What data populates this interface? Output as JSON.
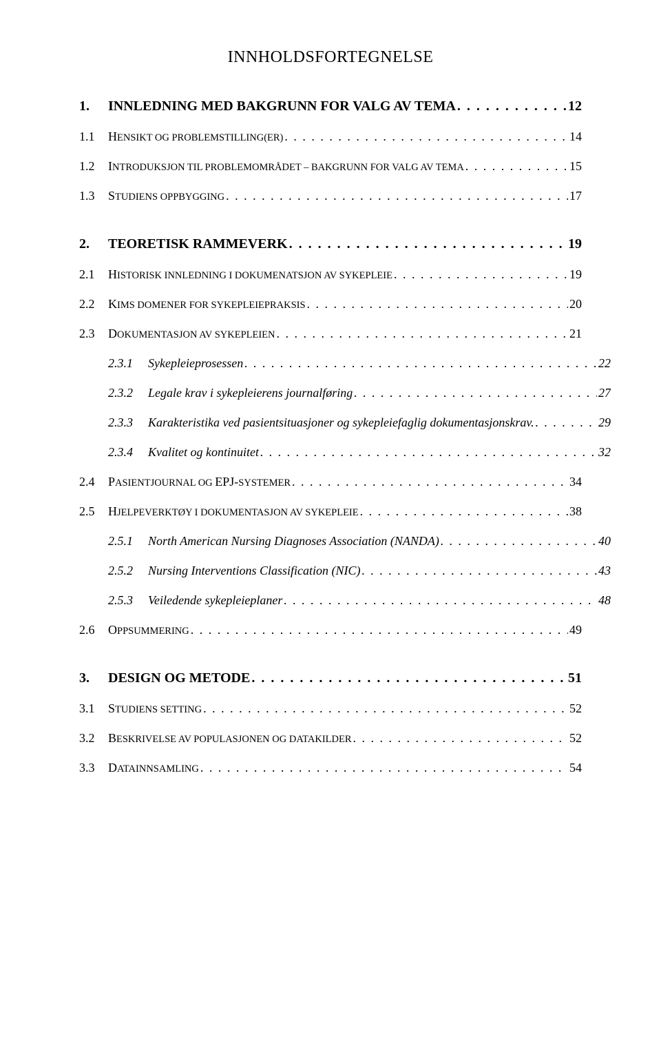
{
  "title": "INNHOLDSFORTEGNELSE",
  "leader_fill": ". . . . . . . . . . . . . . . . . . . . . . . . . . . . . . . . . . . . . . . . . . . . . . . . . . . . . . . . . . . . . . . . . . . . . . . . . . . . . . . . . . . . . . . . . . . . . . . . . . . . . . . . . . . . . . . . . . . .",
  "entries": [
    {
      "level": 1,
      "num": "1.",
      "label": "INNLEDNING MED BAKGRUNN FOR VALG AV TEMA",
      "page": "12"
    },
    {
      "level": 2,
      "num": "1.1",
      "lead": "H",
      "rest": "ENSIKT OG PROBLEMSTILLING(ER)",
      "page": "14"
    },
    {
      "level": 2,
      "num": "1.2",
      "lead": "I",
      "rest": "NTRODUKSJON TIL PROBLEMOMRÅDET – BAKGRUNN FOR VALG AV TEMA",
      "page": "15"
    },
    {
      "level": 2,
      "num": "1.3",
      "lead": "S",
      "rest": "TUDIENS OPPBYGGING",
      "page": "17"
    },
    {
      "level": 1,
      "num": "2.",
      "label": "TEORETISK RAMMEVERK",
      "page": "19",
      "chapter_spacer": true
    },
    {
      "level": 2,
      "num": "2.1",
      "lead": "H",
      "rest": "ISTORISK INNLEDNING I DOKUMENATSJON AV SYKEPLEIE",
      "page": "19"
    },
    {
      "level": 2,
      "num": "2.2",
      "lead": "K",
      "rest": "IMS DOMENER FOR SYKEPLEIEPRAKSIS",
      "page": "20"
    },
    {
      "level": 2,
      "num": "2.3",
      "lead": "D",
      "rest": "OKUMENTASJON AV SYKEPLEIEN",
      "page": "21"
    },
    {
      "level": 3,
      "num": "2.3.1",
      "label": "Sykepleieprosessen",
      "page": "22"
    },
    {
      "level": 3,
      "num": "2.3.2",
      "label": "Legale krav i sykepleierens journalføring",
      "page": "27"
    },
    {
      "level": 3,
      "num": "2.3.3",
      "label": "Karakteristika ved pasientsituasjoner og sykepleiefaglig dokumentasjonskrav.",
      "page": "29"
    },
    {
      "level": 3,
      "num": "2.3.4",
      "label": "Kvalitet og kontinuitet",
      "page": "32"
    },
    {
      "level": 2,
      "num": "2.4",
      "lead": "P",
      "rest": "ASIENTJOURNAL OG ",
      "tail_upper": "EPJ-",
      "rest2": "SYSTEMER",
      "page": "34"
    },
    {
      "level": 2,
      "num": "2.5",
      "lead": "H",
      "rest": "JELPEVERKTØY I DOKUMENTASJON AV SYKEPLEIE",
      "page": "38"
    },
    {
      "level": 3,
      "num": "2.5.1",
      "label": "North American Nursing Diagnoses Association (NANDA)",
      "page": "40"
    },
    {
      "level": 3,
      "num": "2.5.2",
      "label": "Nursing Interventions Classification (NIC)",
      "page": "43"
    },
    {
      "level": 3,
      "num": "2.5.3",
      "label": "Veiledende sykepleieplaner",
      "page": "48"
    },
    {
      "level": 2,
      "num": "2.6",
      "lead": "O",
      "rest": "PPSUMMERING",
      "page": "49"
    },
    {
      "level": 1,
      "num": "3.",
      "label": "DESIGN OG METODE",
      "page": "51",
      "chapter_spacer": true
    },
    {
      "level": 2,
      "num": "3.1",
      "lead": "S",
      "rest": "TUDIENS SETTING",
      "page": "52"
    },
    {
      "level": 2,
      "num": "3.2",
      "lead": "B",
      "rest": "ESKRIVELSE AV POPULASJONEN OG DATAKILDER",
      "page": "52"
    },
    {
      "level": 2,
      "num": "3.3",
      "lead": "D",
      "rest": "ATAINNSAMLING",
      "page": "54"
    }
  ]
}
